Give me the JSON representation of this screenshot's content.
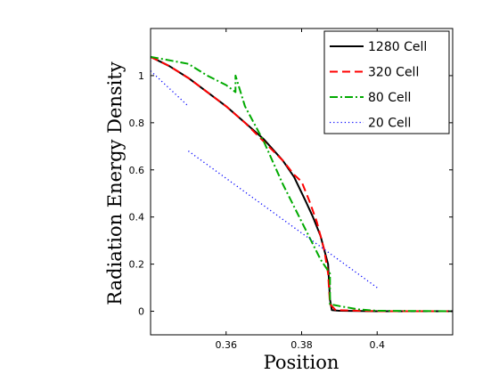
{
  "chart_data": {
    "type": "line",
    "title": "",
    "xlabel": "Position",
    "ylabel": "Radiation Energy Density",
    "xlim": [
      0.34,
      0.42
    ],
    "ylim": [
      -0.1,
      1.2
    ],
    "xticks": [
      0.36,
      0.38,
      0.4
    ],
    "yticks": [
      0,
      0.2,
      0.4,
      0.6,
      0.8,
      1
    ],
    "xtick_labels": [
      "0.36",
      "0.38",
      "0.4"
    ],
    "ytick_labels": [
      "0",
      "0.2",
      "0.4",
      "0.6",
      "0.8",
      "1"
    ],
    "grid": false,
    "legend_position": "top-right",
    "series": [
      {
        "name": "1280 Cell",
        "color": "#000000",
        "style": "solid",
        "x": [
          0.34,
          0.345,
          0.35,
          0.355,
          0.36,
          0.365,
          0.37,
          0.375,
          0.378,
          0.381,
          0.383,
          0.385,
          0.386,
          0.387,
          0.3875,
          0.388,
          0.39,
          0.4,
          0.42
        ],
        "y": [
          1.08,
          1.04,
          0.99,
          0.93,
          0.87,
          0.8,
          0.73,
          0.64,
          0.57,
          0.47,
          0.4,
          0.32,
          0.26,
          0.2,
          0.05,
          0.005,
          0.002,
          0.0,
          0.0
        ]
      },
      {
        "name": "320 Cell",
        "color": "#ff0000",
        "style": "dashed",
        "x": [
          0.34,
          0.345,
          0.35,
          0.355,
          0.36,
          0.365,
          0.37,
          0.375,
          0.378,
          0.38,
          0.382,
          0.384,
          0.386,
          0.387,
          0.3875,
          0.389,
          0.395,
          0.4,
          0.42
        ],
        "y": [
          1.08,
          1.04,
          0.99,
          0.93,
          0.87,
          0.8,
          0.72,
          0.64,
          0.58,
          0.55,
          0.47,
          0.38,
          0.26,
          0.16,
          0.03,
          0.005,
          0.002,
          0.0,
          0.0
        ]
      },
      {
        "name": "80 Cell",
        "color": "#00aa00",
        "style": "dashdot",
        "x": [
          0.34,
          0.35,
          0.355,
          0.36,
          0.3625,
          0.3625,
          0.365,
          0.37,
          0.375,
          0.38,
          0.385,
          0.3875,
          0.3875,
          0.39,
          0.395,
          0.4,
          0.42
        ],
        "y": [
          1.08,
          1.05,
          1.0,
          0.96,
          0.93,
          1.0,
          0.87,
          0.72,
          0.54,
          0.38,
          0.22,
          0.16,
          0.03,
          0.022,
          0.008,
          0.002,
          0.0
        ]
      },
      {
        "name": "20 Cell",
        "color": "#0000ff",
        "style": "dotted",
        "segments": [
          {
            "x": [
              0.34,
              0.35
            ],
            "y": [
              1.02,
              0.87
            ]
          },
          {
            "x": [
              0.35,
              0.4
            ],
            "y": [
              0.68,
              0.1
            ]
          }
        ]
      }
    ]
  }
}
